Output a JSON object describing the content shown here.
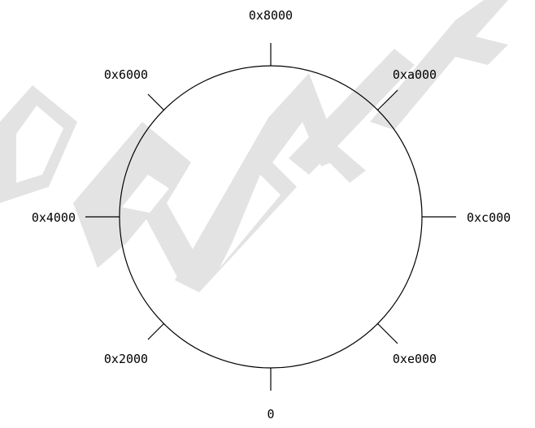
{
  "watermark": {
    "text": "DRAFT",
    "color": "#d9d9d9"
  },
  "ring": {
    "stroke_color": "#000000",
    "ticks": [
      {
        "label": "0"
      },
      {
        "label": "0x2000"
      },
      {
        "label": "0x4000"
      },
      {
        "label": "0x6000"
      },
      {
        "label": "0x8000"
      },
      {
        "label": "0xa000"
      },
      {
        "label": "0xc000"
      },
      {
        "label": "0xe000"
      }
    ]
  }
}
